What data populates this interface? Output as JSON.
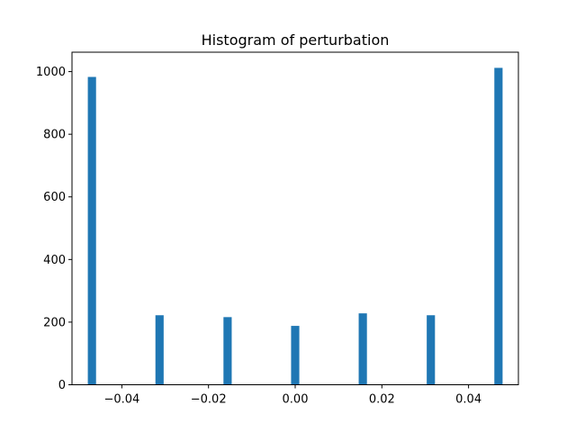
{
  "chart_data": {
    "type": "bar",
    "title": "Histogram of perturbation",
    "xlabel": "",
    "ylabel": "",
    "xlim": [
      -0.0515,
      0.0515
    ],
    "ylim": [
      0,
      1062
    ],
    "bar_width": 0.0019,
    "color": "#1f77b4",
    "x": [
      -0.0469,
      -0.0313,
      -0.0156,
      0.0,
      0.0156,
      0.0313,
      0.0469
    ],
    "values": [
      983,
      222,
      216,
      188,
      228,
      222,
      1012
    ],
    "x_ticks": [
      {
        "value": -0.04,
        "label": "−0.04"
      },
      {
        "value": -0.02,
        "label": "−0.02"
      },
      {
        "value": 0.0,
        "label": "0.00"
      },
      {
        "value": 0.02,
        "label": "0.02"
      },
      {
        "value": 0.04,
        "label": "0.04"
      }
    ],
    "y_ticks": [
      {
        "value": 0,
        "label": "0"
      },
      {
        "value": 200,
        "label": "200"
      },
      {
        "value": 400,
        "label": "400"
      },
      {
        "value": 600,
        "label": "600"
      },
      {
        "value": 800,
        "label": "800"
      },
      {
        "value": 1000,
        "label": "1000"
      }
    ],
    "grid": false,
    "legend": "none"
  }
}
